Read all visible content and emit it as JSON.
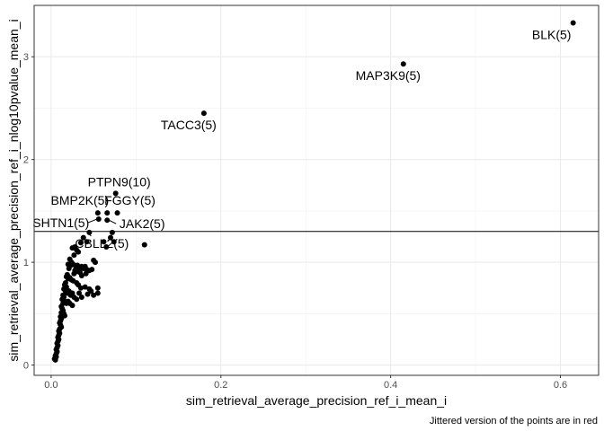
{
  "chart_data": {
    "type": "scatter",
    "xlabel": "sim_retrieval_average_precision_ref_i_mean_i",
    "ylabel": "sim_retrieval_average_precision_ref_i_nlog10pvalue_mean_i",
    "caption": "Jittered version of the points are in red",
    "xlim": [
      -0.02,
      0.645
    ],
    "ylim": [
      -0.1,
      3.5
    ],
    "x_ticks": [
      0.0,
      0.2,
      0.4,
      0.6
    ],
    "x_tick_labels": [
      "0.0",
      "0.2",
      "0.4",
      "0.6"
    ],
    "y_ticks": [
      0,
      1,
      2,
      3
    ],
    "y_tick_labels": [
      "0",
      "1",
      "2",
      "3"
    ],
    "hline": 1.3,
    "grid": true,
    "labeled_points": [
      {
        "label": "BLK(5)",
        "x": 0.615,
        "y": 3.33
      },
      {
        "label": "MAP3K9(5)",
        "x": 0.415,
        "y": 2.93
      },
      {
        "label": "TACC3(5)",
        "x": 0.18,
        "y": 2.45
      },
      {
        "label": "PTPN9(10)",
        "x": 0.076,
        "y": 1.67
      },
      {
        "label": "BMP2K(5)",
        "x": 0.055,
        "y": 1.48
      },
      {
        "label": "FGGY(5)",
        "x": 0.078,
        "y": 1.48
      },
      {
        "label": "SHTN1(5)",
        "x": 0.056,
        "y": 1.42
      },
      {
        "label": "JAK2(5)",
        "x": 0.066,
        "y": 1.41
      },
      {
        "label": "CBLL2(5)",
        "x": 0.045,
        "y": 1.29
      }
    ],
    "points": [
      [
        0.615,
        3.33
      ],
      [
        0.415,
        2.93
      ],
      [
        0.18,
        2.45
      ],
      [
        0.076,
        1.67
      ],
      [
        0.055,
        1.48
      ],
      [
        0.066,
        1.48
      ],
      [
        0.078,
        1.48
      ],
      [
        0.056,
        1.42
      ],
      [
        0.066,
        1.41
      ],
      [
        0.045,
        1.29
      ],
      [
        0.072,
        1.29
      ],
      [
        0.07,
        1.24
      ],
      [
        0.062,
        1.2
      ],
      [
        0.074,
        1.2
      ],
      [
        0.065,
        1.15
      ],
      [
        0.11,
        1.17
      ],
      [
        0.038,
        1.24
      ],
      [
        0.035,
        1.19
      ],
      [
        0.042,
        1.2
      ],
      [
        0.028,
        1.15
      ],
      [
        0.03,
        1.12
      ],
      [
        0.032,
        1.1
      ],
      [
        0.025,
        1.14
      ],
      [
        0.027,
        1.07
      ],
      [
        0.022,
        1.03
      ],
      [
        0.024,
        1.0
      ],
      [
        0.02,
        0.98
      ],
      [
        0.023,
        0.97
      ],
      [
        0.021,
        0.94
      ],
      [
        0.026,
        0.98
      ],
      [
        0.029,
        0.96
      ],
      [
        0.031,
        0.97
      ],
      [
        0.033,
        0.94
      ],
      [
        0.036,
        0.96
      ],
      [
        0.038,
        0.94
      ],
      [
        0.04,
        0.96
      ],
      [
        0.042,
        0.93
      ],
      [
        0.045,
        0.92
      ],
      [
        0.048,
        0.93
      ],
      [
        0.03,
        0.91
      ],
      [
        0.034,
        0.9
      ],
      [
        0.028,
        0.92
      ],
      [
        0.027,
        0.89
      ],
      [
        0.05,
        1.02
      ],
      [
        0.052,
        1.0
      ],
      [
        0.041,
        0.89
      ],
      [
        0.036,
        0.87
      ],
      [
        0.019,
        0.88
      ],
      [
        0.018,
        0.86
      ],
      [
        0.02,
        0.84
      ],
      [
        0.022,
        0.85
      ],
      [
        0.024,
        0.83
      ],
      [
        0.026,
        0.82
      ],
      [
        0.03,
        0.8
      ],
      [
        0.032,
        0.78
      ],
      [
        0.035,
        0.75
      ],
      [
        0.04,
        0.76
      ],
      [
        0.045,
        0.74
      ],
      [
        0.047,
        0.72
      ],
      [
        0.055,
        0.75
      ],
      [
        0.055,
        0.7
      ],
      [
        0.05,
        0.68
      ],
      [
        0.043,
        0.69
      ],
      [
        0.017,
        0.8
      ],
      [
        0.016,
        0.78
      ],
      [
        0.018,
        0.76
      ],
      [
        0.015,
        0.74
      ],
      [
        0.017,
        0.72
      ],
      [
        0.019,
        0.7
      ],
      [
        0.021,
        0.72
      ],
      [
        0.023,
        0.68
      ],
      [
        0.025,
        0.7
      ],
      [
        0.027,
        0.66
      ],
      [
        0.03,
        0.64
      ],
      [
        0.033,
        0.7
      ],
      [
        0.036,
        0.66
      ],
      [
        0.014,
        0.68
      ],
      [
        0.015,
        0.66
      ],
      [
        0.013,
        0.64
      ],
      [
        0.016,
        0.62
      ],
      [
        0.014,
        0.6
      ],
      [
        0.018,
        0.6
      ],
      [
        0.02,
        0.62
      ],
      [
        0.022,
        0.6
      ],
      [
        0.025,
        0.58
      ],
      [
        0.012,
        0.57
      ],
      [
        0.013,
        0.55
      ],
      [
        0.014,
        0.53
      ],
      [
        0.012,
        0.51
      ],
      [
        0.013,
        0.49
      ],
      [
        0.015,
        0.5
      ],
      [
        0.016,
        0.48
      ],
      [
        0.011,
        0.47
      ],
      [
        0.012,
        0.45
      ],
      [
        0.011,
        0.43
      ],
      [
        0.01,
        0.41
      ],
      [
        0.011,
        0.39
      ],
      [
        0.012,
        0.37
      ],
      [
        0.01,
        0.35
      ],
      [
        0.009,
        0.33
      ],
      [
        0.01,
        0.31
      ],
      [
        0.009,
        0.29
      ],
      [
        0.008,
        0.27
      ],
      [
        0.009,
        0.25
      ],
      [
        0.008,
        0.23
      ],
      [
        0.007,
        0.21
      ],
      [
        0.008,
        0.19
      ],
      [
        0.007,
        0.17
      ],
      [
        0.006,
        0.15
      ],
      [
        0.007,
        0.13
      ],
      [
        0.006,
        0.11
      ],
      [
        0.005,
        0.09
      ],
      [
        0.006,
        0.08
      ],
      [
        0.005,
        0.07
      ],
      [
        0.004,
        0.06
      ],
      [
        0.005,
        0.05
      ]
    ]
  }
}
